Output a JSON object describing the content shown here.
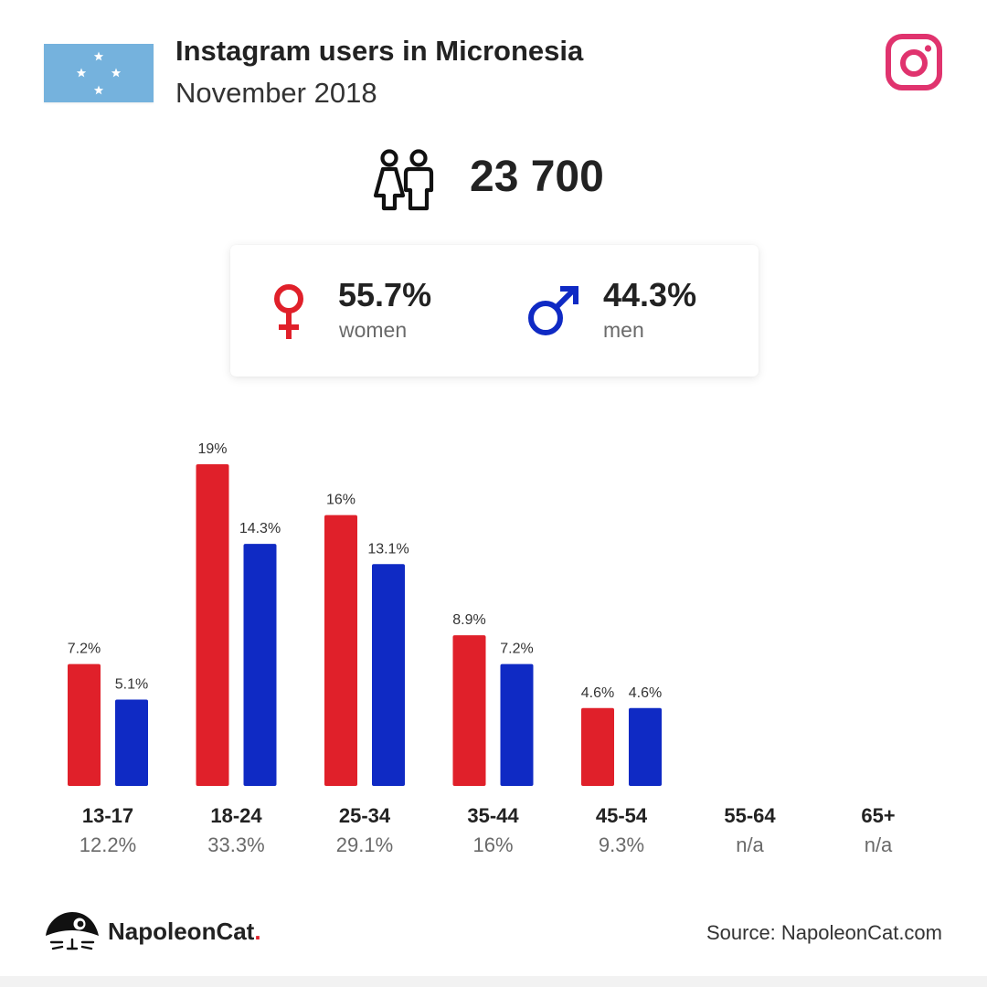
{
  "header": {
    "title": "Instagram users in Micronesia",
    "subtitle": "November 2018",
    "flag_icon": "micronesia-flag-icon",
    "platform_icon": "instagram-icon"
  },
  "total": {
    "icon": "people-icon",
    "value": "23 700"
  },
  "gender": {
    "women": {
      "icon": "female-symbol-icon",
      "percent": "55.7%",
      "label": "women",
      "color": "#e0202a"
    },
    "men": {
      "icon": "male-symbol-icon",
      "percent": "44.3%",
      "label": "men",
      "color": "#0f2ac4"
    }
  },
  "chart_data": {
    "type": "bar",
    "categories": [
      "13-17",
      "18-24",
      "25-34",
      "35-44",
      "45-54",
      "55-64",
      "65+"
    ],
    "category_totals": [
      "12.2%",
      "33.3%",
      "29.1%",
      "16%",
      "9.3%",
      "n/a",
      "n/a"
    ],
    "series": [
      {
        "values": [
          7.2,
          19,
          16,
          8.9,
          4.6,
          null,
          null
        ],
        "labels": [
          "7.2%",
          "19%",
          "16%",
          "8.9%",
          "4.6%",
          "",
          ""
        ],
        "color": "#e0202a"
      },
      {
        "values": [
          5.1,
          14.3,
          13.1,
          7.2,
          4.6,
          null,
          null
        ],
        "labels": [
          "5.1%",
          "14.3%",
          "13.1%",
          "7.2%",
          "4.6%",
          "",
          ""
        ],
        "color": "#0f2ac4"
      }
    ],
    "ylim": [
      0,
      19
    ]
  },
  "footer": {
    "brand_icon": "napoleoncat-logo-icon",
    "brand_name": "NapoleonCat",
    "brand_dot": ".",
    "source": "Source: NapoleonCat.com"
  }
}
